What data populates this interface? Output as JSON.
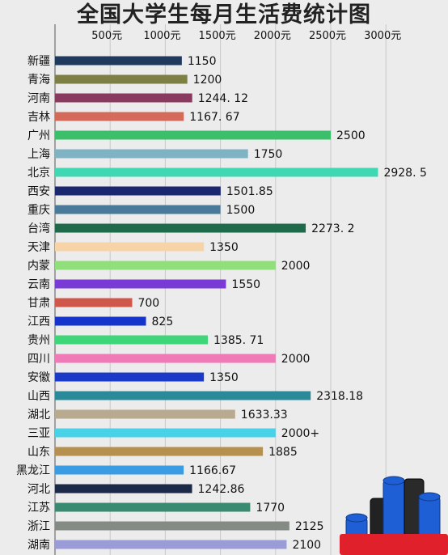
{
  "chart_data": {
    "type": "bar",
    "orientation": "horizontal",
    "title": "全国大学生每月生活费统计图",
    "xlabel": "",
    "ylabel": "",
    "xlim": [
      0,
      3150
    ],
    "tick_values": [
      500,
      1000,
      1500,
      2000,
      2500,
      3000
    ],
    "tick_labels": [
      "500元",
      "1000元",
      "1500元",
      "2000元",
      "2500元",
      "3000元"
    ],
    "categories": [
      "新疆",
      "青海",
      "河南",
      "吉林",
      "广州",
      "上海",
      "北京",
      "西安",
      "重庆",
      "台湾",
      "天津",
      "内蒙",
      "云南",
      "甘肃",
      "江西",
      "贵州",
      "四川",
      "安徽",
      "山西",
      "湖北",
      "三亚",
      "山东",
      "黑龙江",
      "河北",
      "江苏",
      "浙江",
      "湖南"
    ],
    "values": [
      1150,
      1200,
      1244.12,
      1167.67,
      2500,
      1750,
      2928.5,
      1501.85,
      1500,
      2273.2,
      1350,
      2000,
      1550,
      700,
      825,
      1385.71,
      2000,
      1350,
      2318.18,
      1633.33,
      2000,
      1885,
      1166.67,
      1242.86,
      1770,
      2125,
      2100
    ],
    "value_labels": [
      "1150",
      "1200",
      "1244. 12",
      "1167. 67",
      "2500",
      "1750",
      "2928. 5",
      "1501.85",
      "1500",
      "2273. 2",
      "1350",
      "2000",
      "1550",
      "700",
      "825",
      "1385. 71",
      "2000",
      "1350",
      "2318.18",
      "1633.33",
      "2000+",
      "1885",
      "1166.67",
      "1242.86",
      "1770",
      "2125",
      "2100"
    ],
    "colors": [
      "#1f3a5c",
      "#7d7f45",
      "#8a3a5e",
      "#d46a5a",
      "#3cbf6a",
      "#7fb3c4",
      "#3fd8b3",
      "#1a2670",
      "#4a7a9a",
      "#1e6a4a",
      "#f7d3a8",
      "#8fe07a",
      "#7a3ad6",
      "#d0584a",
      "#1434cc",
      "#3fd67a",
      "#f07ab8",
      "#1c3ac8",
      "#2a8a9a",
      "#b8aa8e",
      "#48d2e8",
      "#b5904e",
      "#3a9ce2",
      "#1a2a48",
      "#3a8a72",
      "#848a84",
      "#9a9cd8"
    ],
    "grid": true,
    "legend": "none"
  }
}
